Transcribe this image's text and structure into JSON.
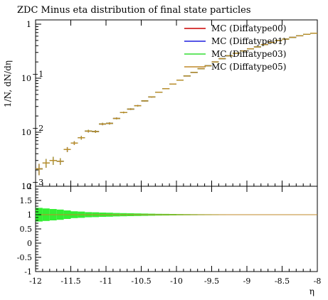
{
  "chart_data": {
    "type": "line",
    "title": "ZDC Minus eta distribution of final state particles",
    "xlabel": "η",
    "ylabel": "1/N, dN/dη",
    "xlim": [
      -12,
      -8
    ],
    "ylim": [
      0.001,
      1.2
    ],
    "yscale": "log",
    "ratio_ylim": [
      -1,
      2
    ],
    "x_ticks": [
      "-12",
      "-11.5",
      "-11",
      "-10.5",
      "-10",
      "-9.5",
      "-9",
      "-8.5",
      "-8"
    ],
    "y_ticks": [
      "1",
      "10",
      "10",
      "10"
    ],
    "y_tick_exponents": [
      "",
      "−1",
      "−2",
      "−3"
    ],
    "ratio_ticks": [
      "2",
      "1.5",
      "1",
      "0.5",
      "0",
      "-0.5",
      "-1"
    ],
    "legend": {
      "placement": "top-right",
      "entries": [
        {
          "name": "MC (Diffatype00)",
          "color": "#cc0000"
        },
        {
          "name": "MC (Diffatype01)",
          "color": "#1f1fdd"
        },
        {
          "name": "MC (Diffatype03)",
          "color": "#33dd33"
        },
        {
          "name": "MC (Diffatype05)",
          "color": "#c08a2a"
        }
      ]
    },
    "bin_width": 0.1,
    "x": [
      -11.95,
      -11.85,
      -11.75,
      -11.65,
      -11.55,
      -11.45,
      -11.35,
      -11.25,
      -11.15,
      -11.05,
      -10.95,
      -10.85,
      -10.75,
      -10.65,
      -10.55,
      -10.45,
      -10.35,
      -10.25,
      -10.15,
      -10.05,
      -9.95,
      -9.85,
      -9.75,
      -9.65,
      -9.55,
      -9.45,
      -9.35,
      -9.25,
      -9.15,
      -9.05,
      -8.95,
      -8.85,
      -8.75,
      -8.65,
      -8.55,
      -8.45,
      -8.35,
      -8.25,
      -8.15,
      -8.05
    ],
    "values": [
      0.0021,
      0.0027,
      0.003,
      0.0029,
      0.0048,
      0.0063,
      0.0079,
      0.0105,
      0.0103,
      0.0142,
      0.0146,
      0.018,
      0.0232,
      0.0268,
      0.031,
      0.038,
      0.045,
      0.055,
      0.064,
      0.078,
      0.092,
      0.11,
      0.128,
      0.15,
      0.17,
      0.2,
      0.23,
      0.26,
      0.29,
      0.32,
      0.35,
      0.38,
      0.42,
      0.46,
      0.5,
      0.53,
      0.57,
      0.61,
      0.65,
      0.68
    ],
    "errors": [
      0.0005,
      0.0005,
      0.0005,
      0.0004,
      0.0005,
      0.0005,
      0.0006,
      0.0006,
      0.0006,
      0.0007,
      0.0007,
      0.0007,
      0.0008,
      0.0009,
      0.001,
      0.001,
      0.0011,
      0.0012,
      0.0013,
      0.0014,
      0.0015,
      0.0016,
      0.0017,
      0.0018,
      0.0019,
      0.002,
      0.0021,
      0.0022,
      0.0023,
      0.0024,
      0.0025,
      0.0026,
      0.0027,
      0.0028,
      0.0029,
      0.003,
      0.0031,
      0.0032,
      0.0033,
      0.0034
    ],
    "ratio_band": [
      0.24,
      0.22,
      0.2,
      0.18,
      0.15,
      0.12,
      0.11,
      0.09,
      0.085,
      0.075,
      0.07,
      0.06,
      0.055,
      0.05,
      0.045,
      0.04,
      0.035,
      0.03,
      0.028,
      0.025,
      0.022,
      0.02,
      0.018,
      0.016,
      0.015,
      0.014,
      0.013,
      0.012,
      0.011,
      0.01,
      0.01,
      0.009,
      0.009,
      0.008,
      0.008,
      0.008,
      0.007,
      0.007,
      0.007,
      0.007
    ],
    "grid": false
  }
}
